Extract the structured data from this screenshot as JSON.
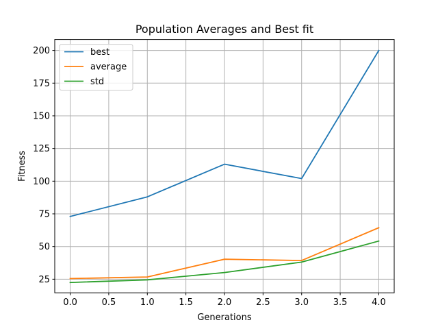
{
  "chart_data": {
    "type": "line",
    "title": "Population Averages and Best fit",
    "xlabel": "Generations",
    "ylabel": "Fitness",
    "x": [
      0,
      1,
      2,
      3,
      4
    ],
    "xlim": [
      -0.2,
      4.2
    ],
    "ylim": [
      14.6,
      208.4
    ],
    "xticks": [
      0.0,
      0.5,
      1.0,
      1.5,
      2.0,
      2.5,
      3.0,
      3.5,
      4.0
    ],
    "xtick_labels": [
      "0.0",
      "0.5",
      "1.0",
      "1.5",
      "2.0",
      "2.5",
      "3.0",
      "3.5",
      "4.0"
    ],
    "yticks": [
      25,
      50,
      75,
      100,
      125,
      150,
      175,
      200
    ],
    "ytick_labels": [
      "25",
      "50",
      "75",
      "100",
      "125",
      "150",
      "175",
      "200"
    ],
    "grid": true,
    "legend_position": "top-left",
    "series": [
      {
        "name": "best",
        "color": "#1f77b4",
        "values": [
          73,
          88,
          113,
          102,
          200
        ]
      },
      {
        "name": "average",
        "color": "#ff7f0e",
        "values": [
          25.5,
          26.7,
          40.3,
          39.3,
          64.4
        ]
      },
      {
        "name": "std",
        "color": "#2ca02c",
        "values": [
          22.5,
          24.5,
          30.1,
          38.1,
          54.2
        ]
      }
    ]
  }
}
